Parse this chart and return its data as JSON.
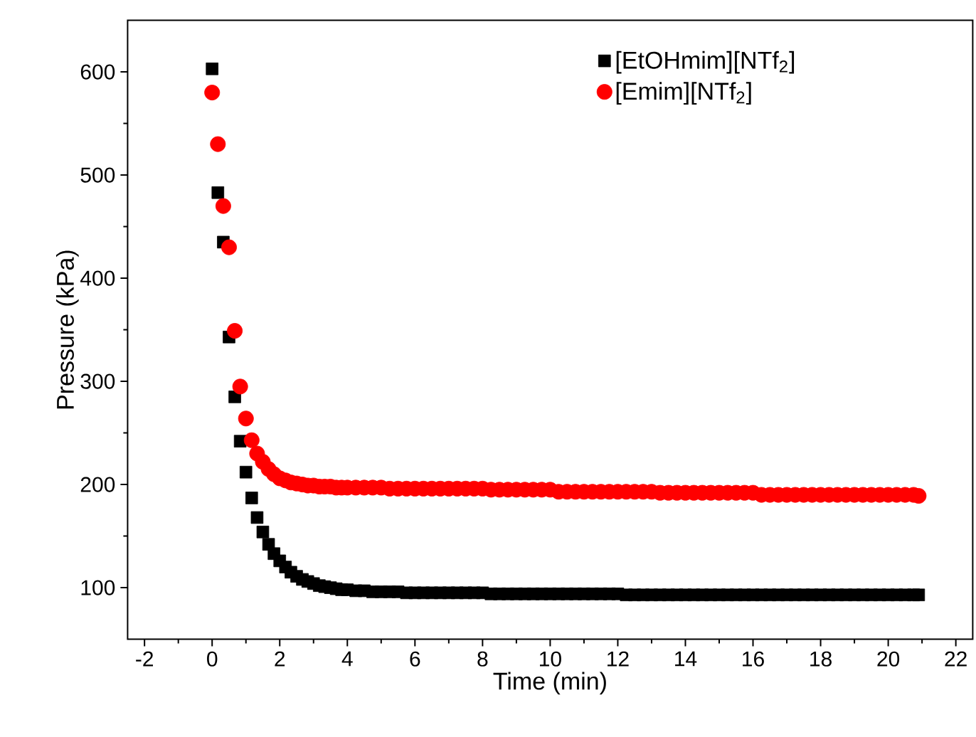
{
  "chart_data": {
    "type": "scatter",
    "xlabel": "Time (min)",
    "ylabel": "Pressure (kPa)",
    "xlim": [
      -2.5,
      22.5
    ],
    "ylim": [
      50,
      650
    ],
    "xticks": [
      -2,
      0,
      2,
      4,
      6,
      8,
      10,
      12,
      14,
      16,
      18,
      20,
      22
    ],
    "yticks": [
      100,
      200,
      300,
      400,
      500,
      600
    ],
    "legend": "top right",
    "grid": false,
    "x": [
      0,
      0.17,
      0.33,
      0.5,
      0.67,
      0.83,
      1,
      1.17,
      1.33,
      1.5,
      1.67,
      1.83,
      2,
      2.17,
      2.33,
      2.5,
      2.67,
      2.83,
      3,
      3.17,
      3.33,
      3.5,
      3.67,
      3.83,
      4,
      4.25,
      4.5,
      4.75,
      5,
      5.25,
      5.5,
      5.75,
      6,
      6.25,
      6.5,
      6.75,
      7,
      7.25,
      7.5,
      7.75,
      8,
      8.25,
      8.5,
      8.75,
      9,
      9.25,
      9.5,
      9.75,
      10,
      10.25,
      10.5,
      10.75,
      11,
      11.25,
      11.5,
      11.75,
      12,
      12.25,
      12.5,
      12.75,
      13,
      13.25,
      13.5,
      13.75,
      14,
      14.25,
      14.5,
      14.75,
      15,
      15.25,
      15.5,
      15.75,
      16,
      16.25,
      16.5,
      16.75,
      17,
      17.25,
      17.5,
      17.75,
      18,
      18.25,
      18.5,
      18.75,
      19,
      19.25,
      19.5,
      19.75,
      20,
      20.25,
      20.5,
      20.75,
      20.9
    ],
    "series": [
      {
        "name": "[EtOHmim][NTf$_{2}$]",
        "color": "#000000",
        "marker": "square",
        "values": [
          603,
          483,
          435,
          343,
          285,
          242,
          212,
          187,
          168,
          154,
          142,
          133,
          126,
          120,
          115,
          111,
          108,
          106,
          104,
          102,
          101,
          100,
          99,
          98,
          98,
          97,
          97,
          96,
          96,
          96,
          96,
          95,
          95,
          95,
          95,
          95,
          95,
          95,
          95,
          95,
          95,
          94,
          94,
          94,
          94,
          94,
          94,
          94,
          94,
          94,
          94,
          94,
          94,
          94,
          94,
          94,
          94,
          93,
          93,
          93,
          93,
          93,
          93,
          93,
          93,
          93,
          93,
          93,
          93,
          93,
          93,
          93,
          93,
          93,
          93,
          93,
          93,
          93,
          93,
          93,
          93,
          93,
          93,
          93,
          93,
          93,
          93,
          93,
          93,
          93,
          93,
          93,
          93
        ]
      },
      {
        "name": "[Emim][NTf$_{2}$]",
        "color": "#ff0000",
        "marker": "circle",
        "values": [
          580,
          530,
          470,
          430,
          349,
          295,
          264,
          243,
          230,
          222,
          215,
          210,
          206,
          204,
          202,
          201,
          200,
          199,
          199,
          198,
          198,
          198,
          197,
          197,
          197,
          197,
          197,
          197,
          197,
          196,
          196,
          196,
          196,
          196,
          196,
          196,
          196,
          196,
          196,
          196,
          196,
          195,
          195,
          195,
          195,
          195,
          195,
          195,
          195,
          193,
          193,
          193,
          193,
          193,
          193,
          193,
          193,
          193,
          193,
          193,
          193,
          192,
          192,
          192,
          192,
          192,
          192,
          192,
          192,
          192,
          192,
          192,
          192,
          190,
          190,
          190,
          190,
          190,
          190,
          190,
          190,
          190,
          190,
          190,
          190,
          190,
          190,
          190,
          190,
          190,
          190,
          190,
          189
        ]
      }
    ]
  }
}
